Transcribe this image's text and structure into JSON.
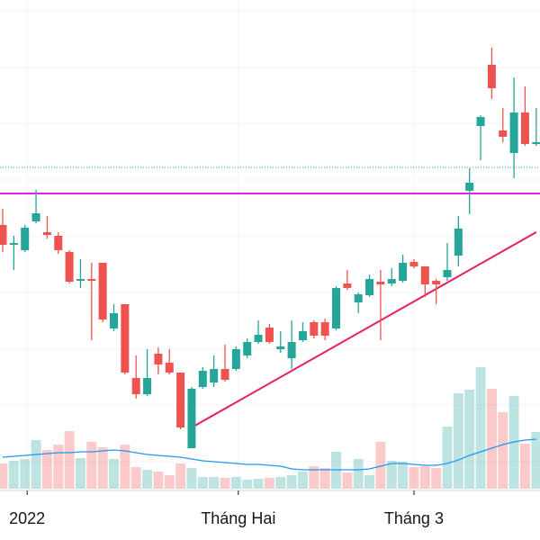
{
  "chart_data": {
    "type": "candlestick",
    "open": [
      35,
      32.8,
      32.2,
      35.4,
      34.2,
      33.8,
      32,
      28.8,
      29,
      30.8,
      23.5,
      26.2,
      18,
      16.2,
      20.7,
      19.7,
      18.6,
      10.2,
      17,
      17.5,
      19,
      19,
      20.5,
      22,
      23.6,
      21.2,
      20.2,
      22.2,
      24.2,
      24.2,
      23.5,
      28.5,
      26.4,
      27.2,
      28.7,
      28.5,
      28.8,
      30.9,
      30.4,
      28.8,
      29.2,
      31.6,
      38.8,
      46,
      52.8,
      45.5,
      43,
      47.5,
      44
    ],
    "high": [
      36.8,
      33.8,
      35,
      38.9,
      36,
      34.2,
      32.2,
      31.2,
      30.8,
      30.8,
      26.2,
      26.2,
      20.5,
      21.2,
      21.4,
      21.2,
      18.6,
      17,
      19.2,
      20.5,
      21.7,
      21.5,
      22.4,
      24.4,
      24,
      23.2,
      24.4,
      24.2,
      24.4,
      24.6,
      28.2,
      30,
      27.5,
      29.5,
      30,
      30.2,
      31.7,
      31.2,
      30.4,
      29,
      33,
      36,
      41.3,
      47.2,
      54.7,
      48,
      51.4,
      50.4,
      48
    ],
    "low": [
      32,
      30,
      32,
      35.2,
      33.5,
      31.8,
      28.5,
      28,
      22.2,
      24.2,
      23.2,
      18.4,
      15.7,
      16,
      18.4,
      18.4,
      12.3,
      10.2,
      16.8,
      17,
      17.6,
      18.8,
      20.2,
      21.8,
      21.8,
      20.8,
      19,
      22,
      22.4,
      22.2,
      23.3,
      27.8,
      25.2,
      27,
      22.2,
      28.2,
      28.6,
      30.2,
      27,
      26.2,
      28.8,
      30.4,
      36.2,
      42.2,
      49,
      44.2,
      40.2,
      43.8,
      43.8
    ],
    "close": [
      32.8,
      33,
      34.7,
      36.3,
      33.9,
      32.2,
      28.7,
      29,
      28.8,
      24.5,
      25.2,
      18.6,
      16.2,
      18,
      19.5,
      18.6,
      12.5,
      16.8,
      18.8,
      19,
      17.8,
      21.2,
      22,
      22.8,
      22,
      21.5,
      22,
      23.2,
      22.7,
      22.7,
      28,
      28,
      27.3,
      29,
      28.4,
      29,
      30.8,
      30.4,
      28.4,
      28.4,
      30,
      34.6,
      39.7,
      47,
      50.2,
      44.8,
      47.5,
      44,
      44.2
    ],
    "volume": [
      28,
      31,
      33,
      54,
      43,
      49,
      64,
      34,
      52,
      46,
      33,
      49,
      24,
      21,
      19,
      15,
      28,
      23,
      13,
      13,
      12,
      13,
      10,
      11,
      12,
      13,
      15,
      19,
      25,
      23,
      41,
      18,
      33,
      15,
      52,
      31,
      30,
      24,
      25,
      23,
      69,
      106,
      110,
      135,
      111,
      85,
      103,
      50,
      63
    ],
    "volume_ma": [
      35,
      36,
      37,
      38,
      39,
      40,
      40,
      41,
      41,
      42,
      43,
      42,
      40,
      38,
      37,
      36,
      35,
      33,
      31,
      30,
      29,
      28,
      27,
      27,
      26,
      25,
      22,
      21,
      21,
      21,
      21,
      21,
      21,
      22,
      25,
      28,
      28,
      27,
      26,
      26,
      28,
      32,
      37,
      41,
      45,
      49,
      52,
      54,
      55
    ],
    "ylim": [
      0,
      60
    ],
    "vlim": [
      0,
      300
    ],
    "ygrid": [
      58.8,
      52.5,
      46.3,
      40,
      33.8,
      27.5,
      21.2,
      15,
      8.7
    ],
    "xticks": [
      {
        "value": 2.2,
        "label": "2022"
      },
      {
        "value": 21.2,
        "label": "Tháng Hai"
      },
      {
        "value": 37,
        "label": "Tháng 3"
      }
    ],
    "up_color": "#26a69a",
    "down_color": "#ef5350",
    "ma_color": "#2196f3",
    "levels": [
      {
        "value": 38.5,
        "color": "#e91ee3"
      },
      {
        "value": 41.4,
        "color": "#26a69a"
      }
    ],
    "trendline": {
      "from": [
        17,
        12.5
      ],
      "to": [
        48,
        34.2
      ],
      "color": "#e91e63"
    }
  }
}
